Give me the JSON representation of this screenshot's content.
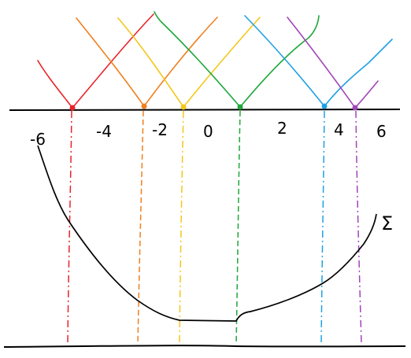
{
  "axis": {
    "tick_labels": [
      "-6",
      "-4",
      "-2",
      "0",
      "2",
      "4",
      "6"
    ]
  },
  "curve": {
    "label": "Σ"
  },
  "sources": [
    {
      "color": "#e8232a",
      "line": "dash-dot"
    },
    {
      "color": "#f07f1e",
      "line": "dashed"
    },
    {
      "color": "#f3c71a",
      "line": "dash-dot"
    },
    {
      "color": "#1fa73a",
      "line": "dashed"
    },
    {
      "color": "#1ea1e3",
      "line": "dash-dot"
    },
    {
      "color": "#a145b8",
      "line": "dash-dot"
    }
  ]
}
